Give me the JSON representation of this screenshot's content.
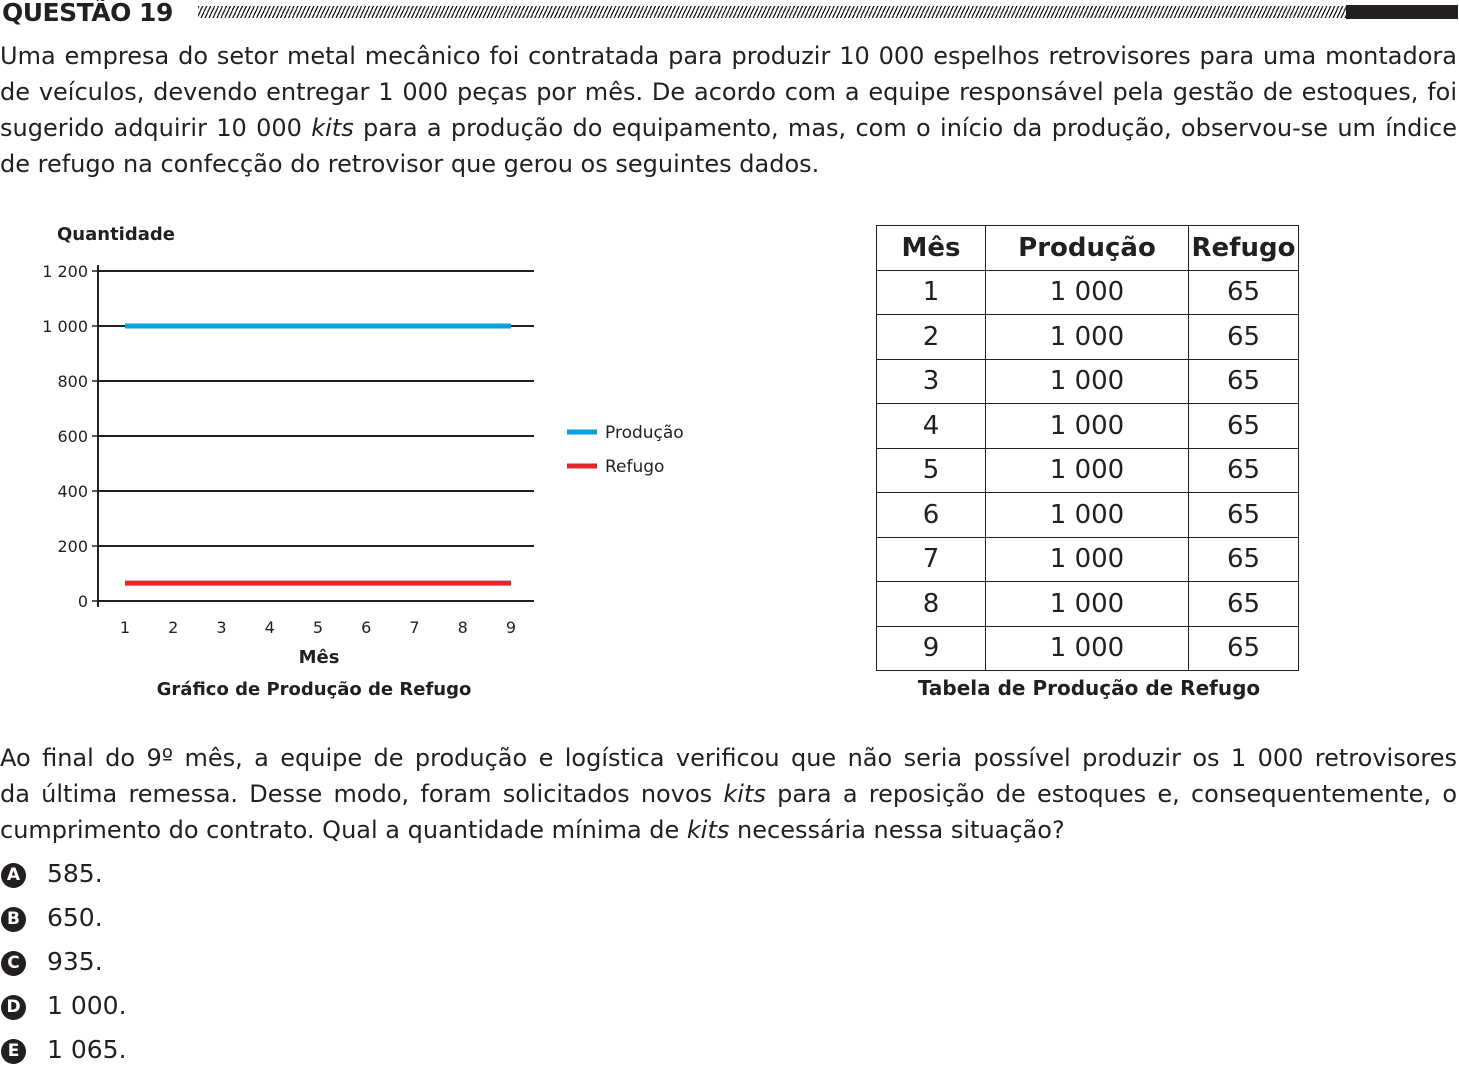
{
  "question": {
    "title": "QUESTÃO 19"
  },
  "intro": {
    "lines": [
      [
        "Uma empresa do setor metal mecânico foi contratada para produzir 10 000 espelhos retrovisores para uma montadora"
      ],
      [
        "de veículos, devendo entregar 1 000 peças por mês. De acordo com a equipe responsável pela gestão de estoques, foi"
      ],
      [
        "sugerido adquirir 10 000 ",
        "kits",
        " para a produção do equipamento, mas, com o início da produção, observou-se um índice"
      ],
      [
        "de refugo na confecção do retrovisor que gerou os seguintes dados."
      ]
    ]
  },
  "chart_data": {
    "type": "line",
    "title": "Gráfico de Produção de Refugo",
    "xlabel": "Mês",
    "ylabel": "Quantidade",
    "x": [
      1,
      2,
      3,
      4,
      5,
      6,
      7,
      8,
      9
    ],
    "ylim": [
      0,
      1200
    ],
    "yticks": [
      0,
      200,
      400,
      600,
      800,
      1000,
      1200
    ],
    "ytick_labels": [
      "0",
      "200",
      "400",
      "600",
      "800",
      "1 000",
      "1 200"
    ],
    "grid": true,
    "legend_position": "right",
    "series": [
      {
        "name": "Produção",
        "color": "#00a3e0",
        "values": [
          1000,
          1000,
          1000,
          1000,
          1000,
          1000,
          1000,
          1000,
          1000
        ]
      },
      {
        "name": "Refugo",
        "color": "#e3262c",
        "values": [
          65,
          65,
          65,
          65,
          65,
          65,
          65,
          65,
          65
        ]
      }
    ]
  },
  "table": {
    "caption": "Tabela de Produção de Refugo",
    "headers": [
      "Mês",
      "Produção",
      "Refugo"
    ],
    "rows": [
      [
        "1",
        "1 000",
        "65"
      ],
      [
        "2",
        "1 000",
        "65"
      ],
      [
        "3",
        "1 000",
        "65"
      ],
      [
        "4",
        "1 000",
        "65"
      ],
      [
        "5",
        "1 000",
        "65"
      ],
      [
        "6",
        "1 000",
        "65"
      ],
      [
        "7",
        "1 000",
        "65"
      ],
      [
        "8",
        "1 000",
        "65"
      ],
      [
        "9",
        "1 000",
        "65"
      ]
    ]
  },
  "body": {
    "lines": [
      [
        "Ao final do 9º mês, a equipe de produção e logística verificou que não seria possível produzir os 1 000 retrovisores"
      ],
      [
        "da última remessa. Desse modo, foram solicitados novos ",
        "kits",
        " para a reposição de estoques e, consequentemente, o"
      ],
      [
        "cumprimento do contrato. Qual a quantidade mínima de ",
        "kits",
        " necessária nessa situação?"
      ]
    ]
  },
  "options": [
    {
      "letter": "A",
      "text": "585."
    },
    {
      "letter": "B",
      "text": "650."
    },
    {
      "letter": "C",
      "text": "935."
    },
    {
      "letter": "D",
      "text": "1 000."
    },
    {
      "letter": "E",
      "text": "1 065."
    }
  ]
}
